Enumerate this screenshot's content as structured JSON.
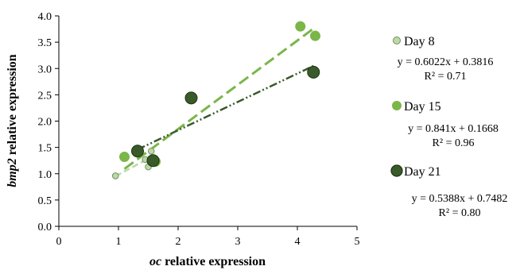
{
  "chart_data": {
    "type": "scatter",
    "xlabel": "oc relative expression",
    "xlabel_italic_part": "oc",
    "xlabel_rest": " relative expression",
    "ylabel_italic_part": "bmp2",
    "ylabel_rest": " relative expression",
    "xlim": [
      0,
      5
    ],
    "ylim": [
      0,
      4
    ],
    "xticks": [
      "0",
      "1",
      "2",
      "3",
      "4",
      "5"
    ],
    "yticks": [
      "0.0",
      "0.5",
      "1.0",
      "1.5",
      "2.0",
      "2.5",
      "3.0",
      "3.5",
      "4.0"
    ],
    "legend_position": "right",
    "series": [
      {
        "name": "Day 8",
        "color": "#bcd9a8",
        "edge": "#6f8f60",
        "size": "small",
        "points": [
          [
            0.95,
            0.96
          ],
          [
            1.45,
            1.27
          ],
          [
            1.5,
            1.13
          ],
          [
            1.55,
            1.43
          ],
          [
            1.55,
            1.27
          ]
        ],
        "trend": {
          "slope": 0.6022,
          "intercept": 0.3816,
          "x_range": [
            0.95,
            1.55
          ],
          "dash": "8,4"
        },
        "equation": "y = 0.6022x + 0.3816",
        "r2": "R² = 0.71"
      },
      {
        "name": "Day 15",
        "color": "#7ab648",
        "edge": "#7ab648",
        "size": "medium",
        "points": [
          [
            1.1,
            1.32
          ],
          [
            1.62,
            1.23
          ],
          [
            4.05,
            3.8
          ],
          [
            4.3,
            3.62
          ]
        ],
        "trend": {
          "slope": 0.841,
          "intercept": 0.1668,
          "x_range": [
            1.1,
            4.3
          ],
          "dash": "14,6"
        },
        "equation": "y = 0.841x + 0.1668",
        "r2": "R² = 0.96"
      },
      {
        "name": "Day 21",
        "color": "#3a5a2a",
        "edge": "#1e3314",
        "size": "large",
        "points": [
          [
            1.32,
            1.43
          ],
          [
            1.58,
            1.25
          ],
          [
            2.22,
            2.44
          ],
          [
            4.27,
            2.93
          ]
        ],
        "trend": {
          "slope": 0.5388,
          "intercept": 0.7482,
          "x_range": [
            1.32,
            4.27
          ],
          "dash": "10,3,2,3,2,3"
        },
        "equation": "y = 0.5388x + 0.7482",
        "r2": "R² = 0.80"
      }
    ]
  }
}
